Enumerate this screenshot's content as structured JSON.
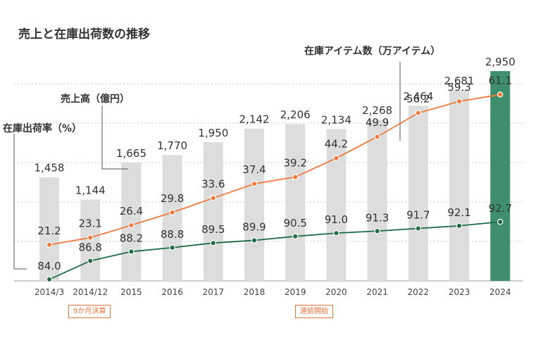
{
  "title": "売上と在庫出荷数の推移",
  "labels": {
    "inventory_items": "在庫アイテム数（万アイテム）",
    "sales": "売上高（億円）",
    "shipping_rate": "在庫出荷率（%）"
  },
  "notes": {
    "nine_month": "9か月決算",
    "consolidated": "連結開始"
  },
  "colors": {
    "bar": "#DDDDDD",
    "bar_highlight": "#3F8F6E",
    "sales_line": "#EF7B3E",
    "shipping_line": "#1F6B45",
    "note": "#E8733A"
  },
  "chart_data": {
    "type": "bar",
    "categories": [
      "2014/3",
      "2014/12",
      "2015",
      "2016",
      "2017",
      "2018",
      "2019",
      "2020",
      "2021",
      "2022",
      "2023",
      "2024"
    ],
    "series": [
      {
        "name": "在庫アイテム数（万アイテム）",
        "type": "bar",
        "values": [
          1458,
          1144,
          1665,
          1770,
          1950,
          2142,
          2206,
          2134,
          2268,
          2464,
          2681,
          2950
        ],
        "labels": [
          "1,458",
          "1,144",
          "1,665",
          "1,770",
          "1,950",
          "2,142",
          "2,206",
          "2,134",
          "2,268",
          "2,464",
          "2,681",
          "2,950"
        ]
      },
      {
        "name": "売上高（億円）",
        "type": "line",
        "values": [
          21.2,
          23.1,
          26.4,
          29.8,
          33.6,
          37.4,
          39.2,
          44.2,
          49.9,
          56.2,
          59.3,
          61.1
        ],
        "labels": [
          "21.2",
          "23.1",
          "26.4",
          "29.8",
          "33.6",
          "37.4",
          "39.2",
          "44.2",
          "49.9",
          "56.2",
          "59.3",
          "61.1"
        ]
      },
      {
        "name": "在庫出荷率（%）",
        "type": "line",
        "values": [
          84.0,
          86.8,
          88.2,
          88.8,
          89.5,
          89.9,
          90.5,
          91.0,
          91.3,
          91.7,
          92.1,
          92.7
        ],
        "labels": [
          "84.0",
          "86.8",
          "88.2",
          "88.8",
          "89.5",
          "89.9",
          "90.5",
          "91.0",
          "91.3",
          "91.7",
          "92.1",
          "92.7"
        ]
      }
    ],
    "grid": true,
    "highlight_category": "2024"
  }
}
